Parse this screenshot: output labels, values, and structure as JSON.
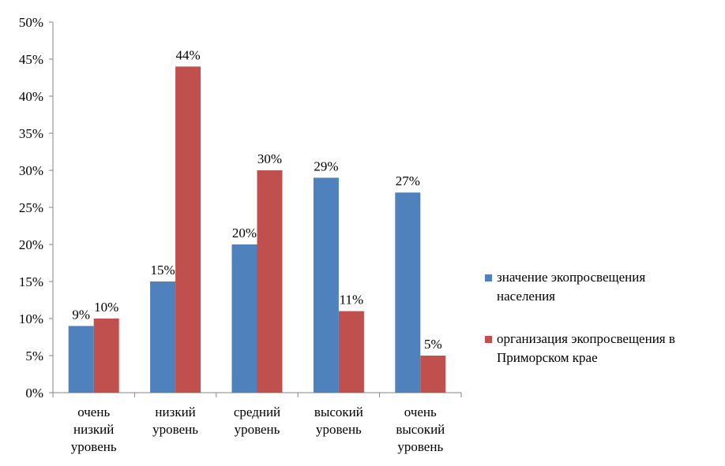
{
  "chart_data": {
    "type": "bar",
    "categories": [
      "очень\nнизкий\nуровень",
      "низкий\nуровень",
      "средний\nуровень",
      "высокий\nуровень",
      "очень\nвысокий\nуровень"
    ],
    "series": [
      {
        "name": "значение  экопросвещения\nнаселения",
        "values": [
          9,
          15,
          20,
          29,
          27
        ],
        "color": "#4F81BD"
      },
      {
        "name": " организация  экопросвещения в\nПриморском крае",
        "values": [
          10,
          44,
          30,
          11,
          5
        ],
        "color": "#C0504D"
      }
    ],
    "data_labels": [
      [
        "9%",
        "15%",
        "20%",
        "29%",
        "27%"
      ],
      [
        "10%",
        "44%",
        "30%",
        "11%",
        "5%"
      ]
    ],
    "yticks": [
      "0%",
      "5%",
      "10%",
      "15%",
      "20%",
      "25%",
      "30%",
      "35%",
      "40%",
      "45%",
      "50%"
    ],
    "ylim": [
      0,
      50
    ],
    "title": "",
    "xlabel": "",
    "ylabel": "",
    "legend_position": "right",
    "grid": false
  }
}
